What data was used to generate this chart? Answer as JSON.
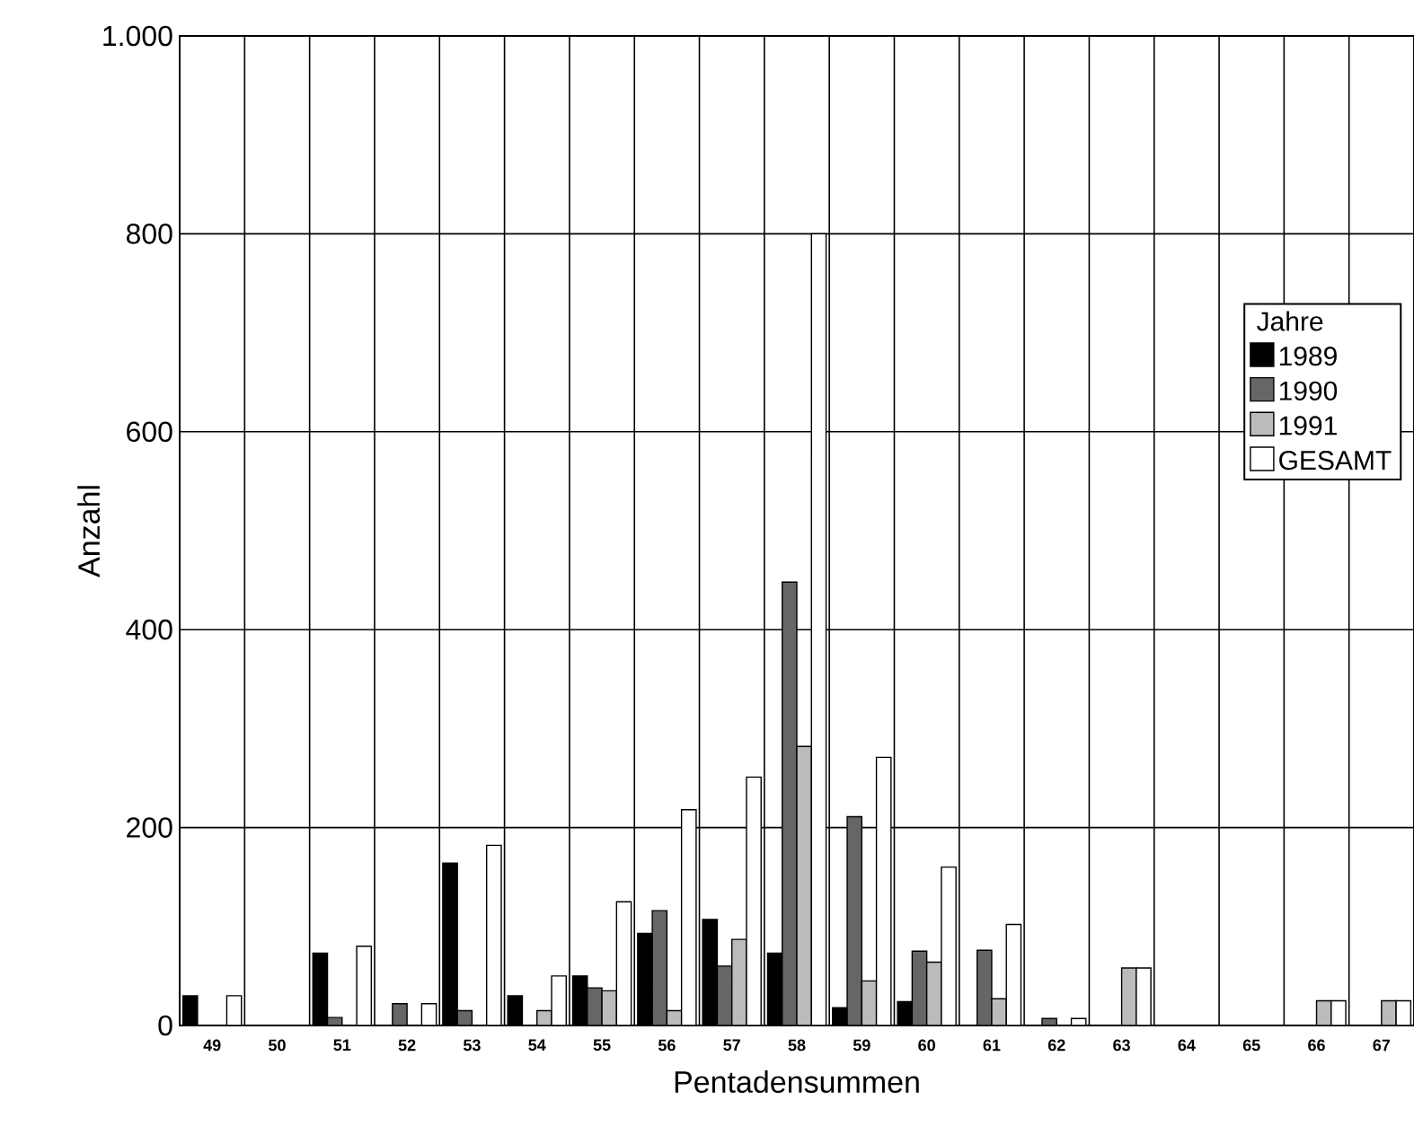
{
  "chart_data": {
    "type": "bar",
    "xlabel": "Pentadensummen",
    "ylabel": "Anzahl",
    "legend_title": "Jahre",
    "categories": [
      "49",
      "50",
      "51",
      "52",
      "53",
      "54",
      "55",
      "56",
      "57",
      "58",
      "59",
      "60",
      "61",
      "62",
      "63",
      "64",
      "65",
      "66",
      "67"
    ],
    "series": [
      {
        "name": "1989",
        "color": "#000000",
        "values": [
          30,
          0,
          73,
          0,
          164,
          30,
          50,
          93,
          107,
          73,
          18,
          24,
          0,
          0,
          0,
          0,
          0,
          0,
          0
        ]
      },
      {
        "name": "1990",
        "color": "#666666",
        "values": [
          0,
          0,
          8,
          22,
          15,
          0,
          38,
          116,
          60,
          448,
          211,
          75,
          76,
          7,
          0,
          0,
          0,
          0,
          0
        ]
      },
      {
        "name": "1991",
        "color": "#bbbbbb",
        "values": [
          0,
          0,
          0,
          0,
          0,
          15,
          35,
          15,
          87,
          282,
          45,
          64,
          27,
          0,
          58,
          0,
          0,
          25,
          25
        ]
      },
      {
        "name": "GESAMT",
        "color": "#ffffff",
        "values": [
          30,
          0,
          80,
          22,
          182,
          50,
          125,
          218,
          251,
          800,
          271,
          160,
          102,
          7,
          58,
          0,
          0,
          25,
          25
        ]
      }
    ],
    "ylim": [
      0,
      1000
    ],
    "yticks": [
      0,
      200,
      400,
      600,
      800,
      {
        "value": 1000,
        "label": "1.000"
      }
    ],
    "grid": true,
    "legend": "right"
  }
}
